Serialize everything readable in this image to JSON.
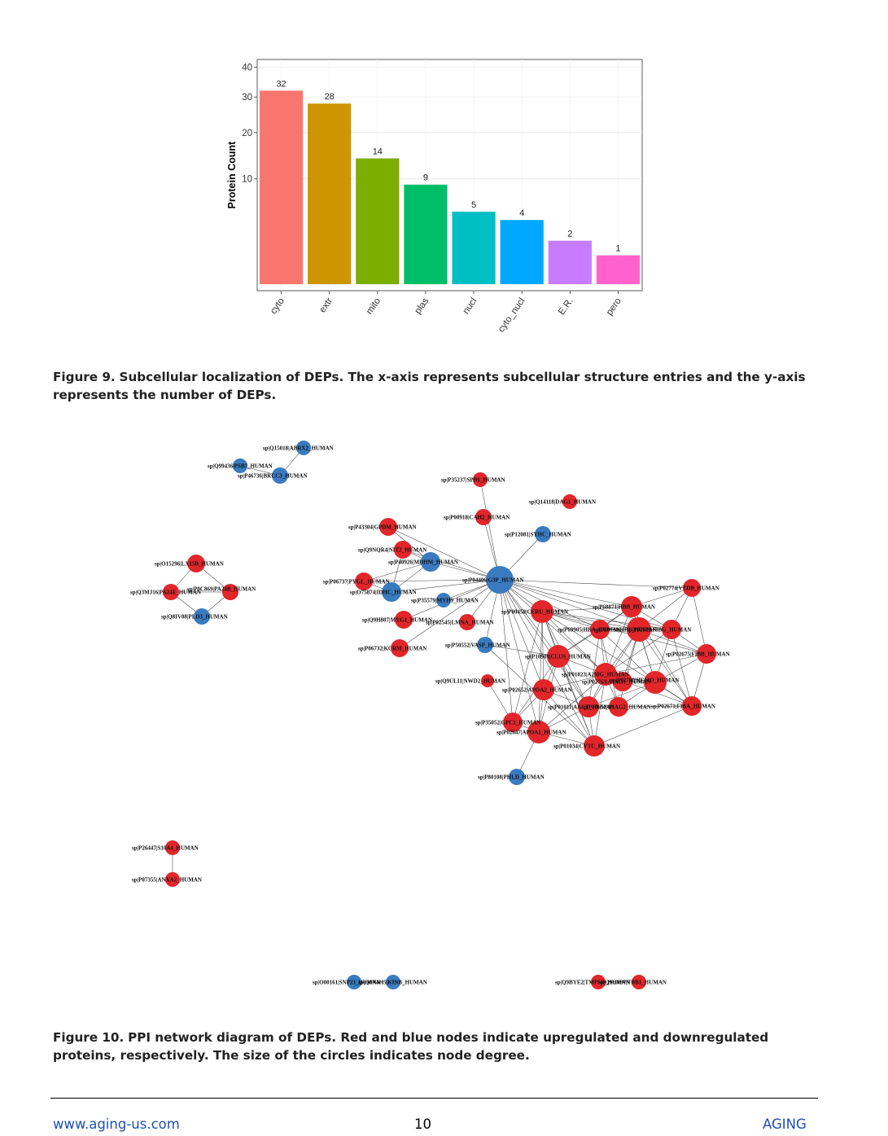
{
  "chart_data": {
    "type": "bar",
    "categories": [
      "cyto",
      "extr",
      "mito",
      "plas",
      "nucl",
      "cyto_nucl",
      "E.R.",
      "pero"
    ],
    "values": [
      32,
      28,
      14,
      9,
      5,
      4,
      2,
      1
    ],
    "colors": [
      "#F8766D",
      "#CD9600",
      "#7CAE00",
      "#00BE67",
      "#00BFC4",
      "#00A9FF",
      "#C77CFF",
      "#FF61CC"
    ],
    "yticks": [
      10,
      20,
      30,
      40
    ],
    "ylabel": "Protein Count",
    "xlabel": "",
    "title": "",
    "scale": "sqrt",
    "ylim": [
      0,
      40
    ]
  },
  "figure9_caption": {
    "label": "Figure 9.",
    "text": "Subcellular localization of DEPs. The x-axis represents subcellular structure entries and the y-axis represents the number of DEPs."
  },
  "network": {
    "nodes": [
      {
        "label": "sp|Q15018|ABRX2_HUMAN",
        "color": "blue"
      },
      {
        "label": "sp|Q99436|PSB7_HUMAN",
        "color": "blue"
      },
      {
        "label": "sp|P46736|BRCC3_HUMAN",
        "color": "blue"
      },
      {
        "label": "sp|P35237|SPB6_HUMAN",
        "color": "red"
      },
      {
        "label": "sp|Q14118|DAG1_HUMAN",
        "color": "red"
      },
      {
        "label": "sp|P00918|CAH2_HUMAN",
        "color": "red"
      },
      {
        "label": "sp|P12081|SYHC_HUMAN",
        "color": "blue"
      },
      {
        "label": "sp|P43304|GPDM_HUMAN",
        "color": "red"
      },
      {
        "label": "sp|Q9NQR4|NIT2_HUMAN",
        "color": "red"
      },
      {
        "label": "sp|P40926|MDHM_HUMAN",
        "color": "blue"
      },
      {
        "label": "sp|P04406|G3P_HUMAN",
        "color": "blue"
      },
      {
        "label": "sp|O15296|LX15B_HUMAN",
        "color": "red"
      },
      {
        "label": "sp|Q3MJ16|PA24E_HUMAN",
        "color": "red"
      },
      {
        "label": "sp|P0C869|PA24B_HUMAN",
        "color": "red"
      },
      {
        "label": "sp|Q8IV08|PLD3_HUMAN",
        "color": "blue"
      },
      {
        "label": "sp|P06737|PYGL_HUMAN",
        "color": "red"
      },
      {
        "label": "sp|O75874|IDHC_HUMAN",
        "color": "blue"
      },
      {
        "label": "sp|P35579|MYH9_HUMAN",
        "color": "blue"
      },
      {
        "label": "sp|Q9H807|MYG1_HUMAN",
        "color": "red"
      },
      {
        "label": "sp|P02545|LMNA_HUMAN",
        "color": "red"
      },
      {
        "label": "sp|P06732|KCRM_HUMAN",
        "color": "red"
      },
      {
        "label": "sp|P50552|VASP_HUMAN",
        "color": "blue"
      },
      {
        "label": "sp|P02774|VTDB_HUMAN",
        "color": "red"
      },
      {
        "label": "sp|P68871|HBB_HUMAN",
        "color": "red"
      },
      {
        "label": "sp|P00450|CERU_HUMAN",
        "color": "red"
      },
      {
        "label": "sp|P69905|HBA_HUMAN",
        "color": "red"
      },
      {
        "label": "sp|P00738|HPT_HUMAN",
        "color": "red"
      },
      {
        "label": "sp|P02679|FIBG_HUMAN",
        "color": "red"
      },
      {
        "label": "sp|P02675|FIBB_HUMAN",
        "color": "red"
      },
      {
        "label": "sp|P10909|CLUS_HUMAN",
        "color": "red"
      },
      {
        "label": "sp|P01023|A2MG_HUMAN",
        "color": "red"
      },
      {
        "label": "sp|P02763|A1AG1_HUMAN",
        "color": "red"
      },
      {
        "label": "sp|P02790|HEMO_HUMAN",
        "color": "red"
      },
      {
        "label": "sp|Q9ULI1|NWD2_HUMAN",
        "color": "red"
      },
      {
        "label": "sp|P02652|APOA2_HUMAN",
        "color": "red"
      },
      {
        "label": "sp|P01011|AACT_HUMAN",
        "color": "red"
      },
      {
        "label": "sp|P19652|A1AG2_HUMAN",
        "color": "red"
      },
      {
        "label": "sp|P02671|FIBA_HUMAN",
        "color": "red"
      },
      {
        "label": "sp|P35052|GPC1_HUMAN",
        "color": "red"
      },
      {
        "label": "sp|P02647|APOA1_HUMAN",
        "color": "red"
      },
      {
        "label": "sp|P01034|CYTC_HUMAN",
        "color": "red"
      },
      {
        "label": "sp|P80108|PHLD_HUMAN",
        "color": "blue"
      },
      {
        "label": "sp|P26447|S10A4_HUMAN",
        "color": "red"
      },
      {
        "label": "sp|P07355|ANXA2_HUMAN",
        "color": "red"
      },
      {
        "label": "sp|O00161|SNP23_HUMAN",
        "color": "blue"
      },
      {
        "label": "sp|Q8N4H5|KINB_HUMAN",
        "color": "blue"
      },
      {
        "label": "sp|Q9BYE2|TMPSD_HUMAN",
        "color": "red"
      },
      {
        "label": "sp|Q9H4B7|TBB1_HUMAN",
        "color": "red"
      }
    ]
  },
  "figure10_caption": {
    "label": "Figure 10.",
    "text": "PPI network diagram of DEPs. Red and blue nodes indicate upregulated and downregulated proteins, respectively. The size of the circles indicates node degree."
  },
  "footer": {
    "url": "www.aging-us.com",
    "page": "10",
    "journal": "AGING"
  }
}
